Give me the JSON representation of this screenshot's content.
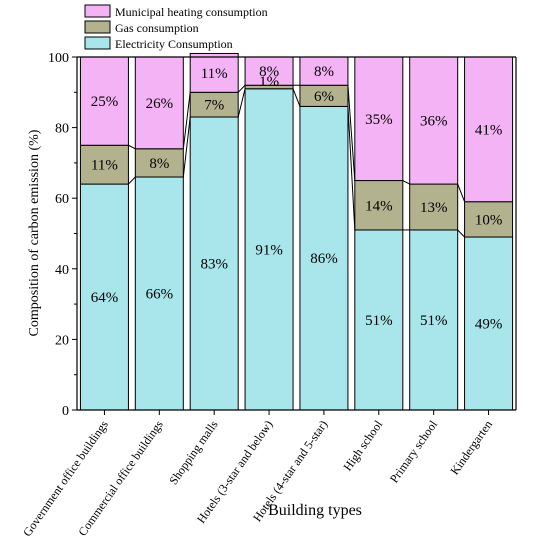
{
  "chart_data": {
    "type": "bar",
    "stacked": true,
    "xlabel": "Building types",
    "ylabel": "Composition of carbon emission (%)",
    "ylim": [
      0,
      100
    ],
    "yticks": [
      0,
      20,
      40,
      60,
      80,
      100
    ],
    "categories": [
      "Government office buildings",
      "Commercial office buildings",
      "Shopping malls",
      "Hotels (3-star and below)",
      "Hotels (4-star and 5-star)",
      "High school",
      "Primary school",
      "Kindergarten"
    ],
    "series": [
      {
        "name": "Electricity Consumption",
        "color": "#a8e6ec",
        "values": [
          64,
          66,
          83,
          91,
          86,
          51,
          51,
          49
        ],
        "labels": [
          "64%",
          "66%",
          "83%",
          "91%",
          "86%",
          "51%",
          "51%",
          "49%"
        ]
      },
      {
        "name": "Gas consumption",
        "color": "#b3b28e",
        "values": [
          11,
          8,
          7,
          1,
          6,
          14,
          13,
          10
        ],
        "labels": [
          "11%",
          "8%",
          "7%",
          "1%",
          "6%",
          "14%",
          "13%",
          "10%"
        ]
      },
      {
        "name": "Municipal heating consumption",
        "color": "#f4b3f4",
        "values": [
          25,
          26,
          11,
          8,
          8,
          35,
          36,
          41
        ],
        "labels": [
          "25%",
          "26%",
          "11%",
          "8%",
          "8%",
          "35%",
          "36%",
          "41%"
        ]
      }
    ],
    "legend_position": "top-left"
  }
}
